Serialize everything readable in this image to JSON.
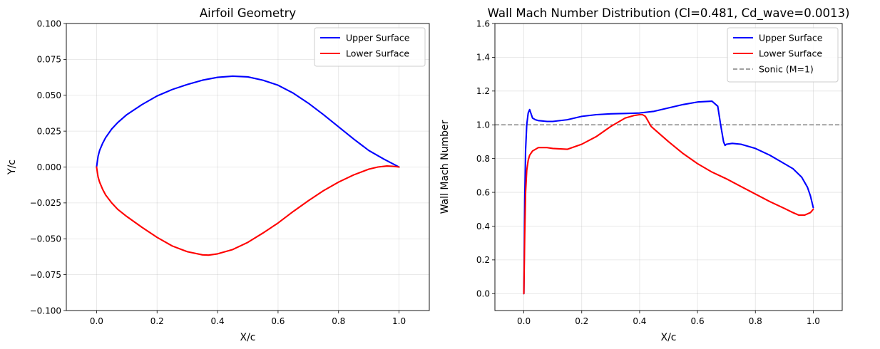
{
  "chart_data": [
    {
      "type": "line",
      "title": "Airfoil Geometry",
      "xlabel": "X/c",
      "ylabel": "Y/c",
      "xlim": [
        -0.1,
        1.1
      ],
      "ylim": [
        -0.1,
        0.1
      ],
      "xticks": [
        0.0,
        0.2,
        0.4,
        0.6,
        0.8,
        1.0
      ],
      "xtick_labels": [
        "0.0",
        "0.2",
        "0.4",
        "0.6",
        "0.8",
        "1.0"
      ],
      "yticks": [
        -0.1,
        -0.075,
        -0.05,
        -0.025,
        0.0,
        0.025,
        0.05,
        0.075,
        0.1
      ],
      "ytick_labels": [
        "−0.100",
        "−0.075",
        "−0.050",
        "−0.025",
        "0.000",
        "0.025",
        "0.050",
        "0.075",
        "0.100"
      ],
      "grid": true,
      "legend_position": "top-right",
      "series": [
        {
          "name": "Upper Surface",
          "color": "#0000ff",
          "x": [
            0.0,
            0.005,
            0.01,
            0.02,
            0.03,
            0.05,
            0.07,
            0.1,
            0.15,
            0.2,
            0.25,
            0.3,
            0.35,
            0.4,
            0.45,
            0.5,
            0.55,
            0.6,
            0.65,
            0.7,
            0.75,
            0.8,
            0.85,
            0.9,
            0.95,
            1.0
          ],
          "y": [
            0.0,
            0.0075,
            0.0115,
            0.0165,
            0.0205,
            0.0265,
            0.031,
            0.0365,
            0.0435,
            0.0495,
            0.054,
            0.0575,
            0.0605,
            0.0625,
            0.0633,
            0.0628,
            0.0605,
            0.057,
            0.0515,
            0.0445,
            0.0365,
            0.028,
            0.0195,
            0.0115,
            0.0055,
            0.0
          ]
        },
        {
          "name": "Lower Surface",
          "color": "#ff0000",
          "x": [
            0.0,
            0.005,
            0.01,
            0.02,
            0.03,
            0.05,
            0.07,
            0.1,
            0.15,
            0.2,
            0.25,
            0.3,
            0.35,
            0.37,
            0.4,
            0.45,
            0.5,
            0.55,
            0.6,
            0.65,
            0.7,
            0.75,
            0.8,
            0.85,
            0.9,
            0.93,
            0.96,
            0.98,
            1.0
          ],
          "y": [
            0.0,
            -0.007,
            -0.0105,
            -0.0155,
            -0.0195,
            -0.025,
            -0.0295,
            -0.0345,
            -0.042,
            -0.049,
            -0.055,
            -0.059,
            -0.0612,
            -0.0614,
            -0.0605,
            -0.0575,
            -0.0525,
            -0.046,
            -0.039,
            -0.031,
            -0.0235,
            -0.0165,
            -0.0105,
            -0.0055,
            -0.0015,
            0.0,
            0.0007,
            0.0005,
            0.0
          ]
        }
      ]
    },
    {
      "type": "line",
      "title": "Wall Mach Number Distribution (Cl=0.481, Cd_wave=0.0013)",
      "xlabel": "X/c",
      "ylabel": "Wall Mach Number",
      "xlim": [
        -0.1,
        1.1
      ],
      "ylim": [
        -0.1,
        1.6
      ],
      "xticks": [
        0.0,
        0.2,
        0.4,
        0.6,
        0.8,
        1.0
      ],
      "xtick_labels": [
        "0.0",
        "0.2",
        "0.4",
        "0.6",
        "0.8",
        "1.0"
      ],
      "yticks": [
        0.0,
        0.2,
        0.4,
        0.6,
        0.8,
        1.0,
        1.2,
        1.4,
        1.6
      ],
      "ytick_labels": [
        "0.0",
        "0.2",
        "0.4",
        "0.6",
        "0.8",
        "1.0",
        "1.2",
        "1.4",
        "1.6"
      ],
      "grid": true,
      "legend_position": "top-right",
      "series": [
        {
          "name": "Upper Surface",
          "color": "#0000ff",
          "x": [
            0.0,
            0.003,
            0.006,
            0.01,
            0.015,
            0.02,
            0.025,
            0.03,
            0.04,
            0.05,
            0.08,
            0.1,
            0.15,
            0.2,
            0.25,
            0.3,
            0.35,
            0.4,
            0.45,
            0.5,
            0.55,
            0.6,
            0.65,
            0.67,
            0.68,
            0.69,
            0.695,
            0.7,
            0.72,
            0.75,
            0.8,
            0.85,
            0.9,
            0.93,
            0.96,
            0.98,
            0.99,
            1.0
          ],
          "y": [
            0.0,
            0.55,
            0.85,
            1.0,
            1.07,
            1.09,
            1.065,
            1.04,
            1.03,
            1.025,
            1.02,
            1.02,
            1.03,
            1.05,
            1.06,
            1.065,
            1.067,
            1.07,
            1.08,
            1.1,
            1.12,
            1.135,
            1.14,
            1.11,
            1.0,
            0.9,
            0.878,
            0.885,
            0.89,
            0.885,
            0.86,
            0.82,
            0.77,
            0.74,
            0.69,
            0.63,
            0.58,
            0.51
          ]
        },
        {
          "name": "Lower Surface",
          "color": "#ff0000",
          "x": [
            0.0,
            0.003,
            0.006,
            0.01,
            0.015,
            0.02,
            0.03,
            0.05,
            0.08,
            0.1,
            0.15,
            0.2,
            0.25,
            0.3,
            0.35,
            0.38,
            0.4,
            0.41,
            0.42,
            0.43,
            0.44,
            0.45,
            0.5,
            0.55,
            0.6,
            0.65,
            0.7,
            0.75,
            0.8,
            0.85,
            0.9,
            0.93,
            0.95,
            0.97,
            0.99,
            1.0
          ],
          "y": [
            0.0,
            0.35,
            0.6,
            0.73,
            0.79,
            0.82,
            0.845,
            0.865,
            0.865,
            0.86,
            0.855,
            0.885,
            0.93,
            0.99,
            1.04,
            1.055,
            1.06,
            1.06,
            1.05,
            1.02,
            0.99,
            0.975,
            0.9,
            0.83,
            0.77,
            0.72,
            0.68,
            0.635,
            0.59,
            0.545,
            0.505,
            0.48,
            0.465,
            0.465,
            0.48,
            0.5
          ]
        }
      ],
      "reference_line": {
        "name": "Sonic (M=1)",
        "y": 1.0,
        "color": "#808080",
        "style": "dashed"
      }
    }
  ]
}
